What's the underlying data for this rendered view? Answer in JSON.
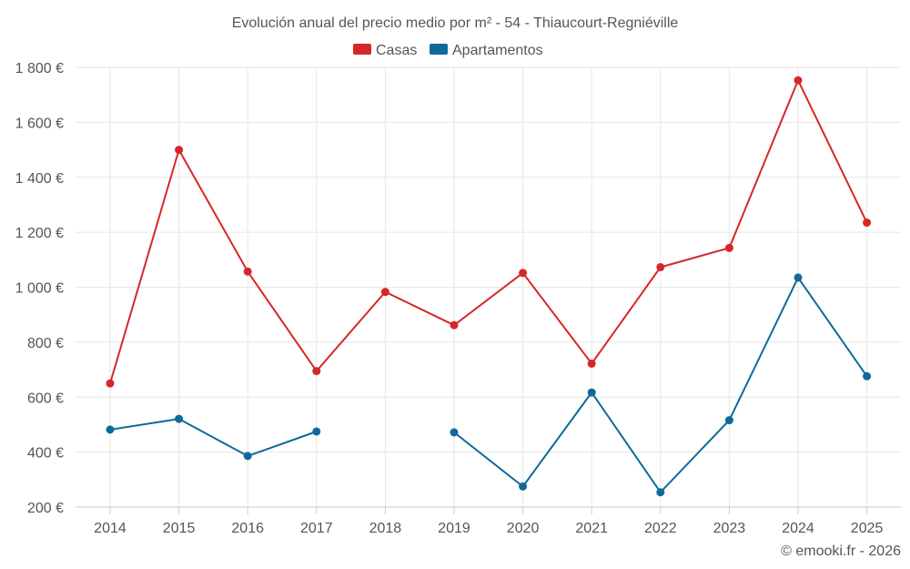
{
  "chart_data": {
    "type": "line",
    "title": "Evolución anual del precio medio por m² - 54 - Thiaucourt-Regniéville",
    "xlabel": "",
    "ylabel": "",
    "categories": [
      "2014",
      "2015",
      "2016",
      "2017",
      "2018",
      "2019",
      "2020",
      "2021",
      "2022",
      "2023",
      "2024",
      "2025"
    ],
    "ylim": [
      200,
      1800
    ],
    "yticks": [
      200,
      400,
      600,
      800,
      1000,
      1200,
      1400,
      1600,
      1800
    ],
    "ytick_labels": [
      "200 €",
      "400 €",
      "600 €",
      "800 €",
      "1 000 €",
      "1 200 €",
      "1 400 €",
      "1 600 €",
      "1 800 €"
    ],
    "grid": true,
    "legend_position": "top-center",
    "series": [
      {
        "name": "Casas",
        "color": "#d62728",
        "values": [
          650,
          1500,
          1057,
          695,
          983,
          862,
          1052,
          722,
          1073,
          1143,
          1753,
          1235
        ]
      },
      {
        "name": "Apartamentos",
        "color": "#0f6a9c",
        "values": [
          482,
          521,
          386,
          475,
          null,
          472,
          275,
          617,
          254,
          516,
          1035,
          676
        ]
      }
    ],
    "credit": "© emooki.fr - 2026"
  }
}
